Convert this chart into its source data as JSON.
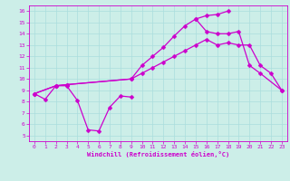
{
  "bg_color": "#cceee8",
  "line_color": "#cc00cc",
  "grid_color": "#aadddd",
  "xlabel": "Windchill (Refroidissement éolien,°C)",
  "xlim": [
    -0.5,
    23.5
  ],
  "ylim": [
    4.5,
    16.5
  ],
  "xticks": [
    0,
    1,
    2,
    3,
    4,
    5,
    6,
    7,
    8,
    9,
    10,
    11,
    12,
    13,
    14,
    15,
    16,
    17,
    18,
    19,
    20,
    21,
    22,
    23
  ],
  "yticks": [
    5,
    6,
    7,
    8,
    9,
    10,
    11,
    12,
    13,
    14,
    15,
    16
  ],
  "s1_x": [
    0,
    1,
    2,
    3,
    4,
    5,
    6,
    7,
    8,
    9
  ],
  "s1_y": [
    8.7,
    8.2,
    9.4,
    9.4,
    8.1,
    5.5,
    5.4,
    7.5,
    8.5,
    8.4
  ],
  "s2_x": [
    0,
    2,
    3,
    9,
    10,
    11,
    12,
    13,
    14,
    15,
    16,
    17,
    18,
    19,
    20,
    21,
    22,
    23
  ],
  "s2_y": [
    8.7,
    9.4,
    9.5,
    10.0,
    10.5,
    11.0,
    11.5,
    12.0,
    12.5,
    13.0,
    13.5,
    13.0,
    13.2,
    13.0,
    13.0,
    11.2,
    10.5,
    9.0
  ],
  "s3_x": [
    0,
    2,
    3,
    9,
    10,
    11,
    12,
    13,
    14,
    15,
    16,
    17,
    18
  ],
  "s3_y": [
    8.7,
    9.4,
    9.5,
    10.0,
    11.2,
    12.0,
    12.8,
    13.8,
    14.7,
    15.3,
    15.6,
    15.7,
    16.0
  ],
  "s4_x": [
    15,
    16,
    17,
    18,
    19,
    20,
    21,
    23
  ],
  "s4_y": [
    15.3,
    14.2,
    14.0,
    14.0,
    14.2,
    11.2,
    10.5,
    9.0
  ]
}
